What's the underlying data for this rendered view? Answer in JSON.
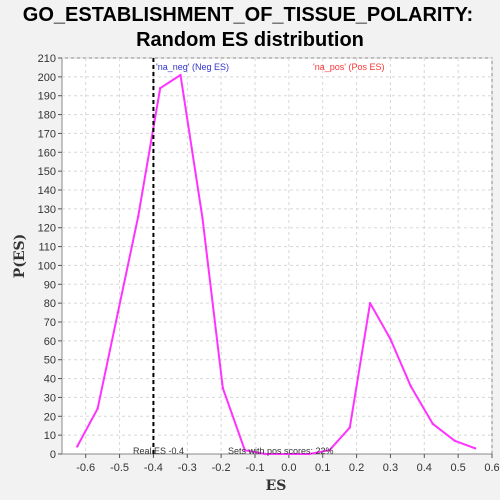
{
  "chart_data": {
    "type": "line",
    "title_line1": "GO_ESTABLISHMENT_OF_TISSUE_POLARITY:",
    "title_line2": "Random ES distribution",
    "xlabel": "ES",
    "ylabel": "P(ES)",
    "xlim": [
      -0.67,
      0.6
    ],
    "ylim": [
      0,
      210
    ],
    "x_ticks": [
      -0.6,
      -0.5,
      -0.4,
      -0.3,
      -0.2,
      -0.1,
      0.0,
      0.1,
      0.2,
      0.3,
      0.4,
      0.5,
      0.6
    ],
    "x_tick_labels": [
      "-0.6",
      "-0.5",
      "-0.4",
      "-0.3",
      "-0.2",
      "-0.1",
      "0.0",
      "0.1",
      "0.2",
      "0.3",
      "0.4",
      "0.5",
      "0.6"
    ],
    "y_ticks": [
      0,
      10,
      20,
      30,
      40,
      50,
      60,
      70,
      80,
      90,
      100,
      110,
      120,
      130,
      140,
      150,
      160,
      170,
      180,
      190,
      200,
      210
    ],
    "grid": true,
    "series": [
      {
        "color": "#ff33ff",
        "points": [
          [
            -0.625,
            4
          ],
          [
            -0.565,
            24
          ],
          [
            -0.505,
            75
          ],
          [
            -0.445,
            126
          ],
          [
            -0.38,
            194
          ],
          [
            -0.32,
            201
          ],
          [
            -0.255,
            125
          ],
          [
            -0.195,
            35
          ],
          [
            -0.13,
            2
          ],
          [
            -0.07,
            0
          ],
          [
            0.0,
            0
          ],
          [
            0.06,
            0
          ],
          [
            0.12,
            2
          ],
          [
            0.18,
            14
          ],
          [
            0.24,
            80
          ],
          [
            0.3,
            61
          ],
          [
            0.36,
            36
          ],
          [
            0.425,
            16
          ],
          [
            0.49,
            7
          ],
          [
            0.55,
            3
          ]
        ]
      }
    ],
    "real_es": -0.4,
    "annotations": {
      "neg_label": "'na_neg' (Neg ES)",
      "pos_label": "'na_pos' (Pos ES)",
      "real_es_label": "Real ES -0.4",
      "pos_scores_label": "Sets with pos scores: 22%"
    },
    "colors": {
      "line": "#ff33ff",
      "neg_label": "#3333cc",
      "pos_label": "#ff3333",
      "grid": "#d8d8d8",
      "plot_bg": "#ffffff"
    }
  }
}
